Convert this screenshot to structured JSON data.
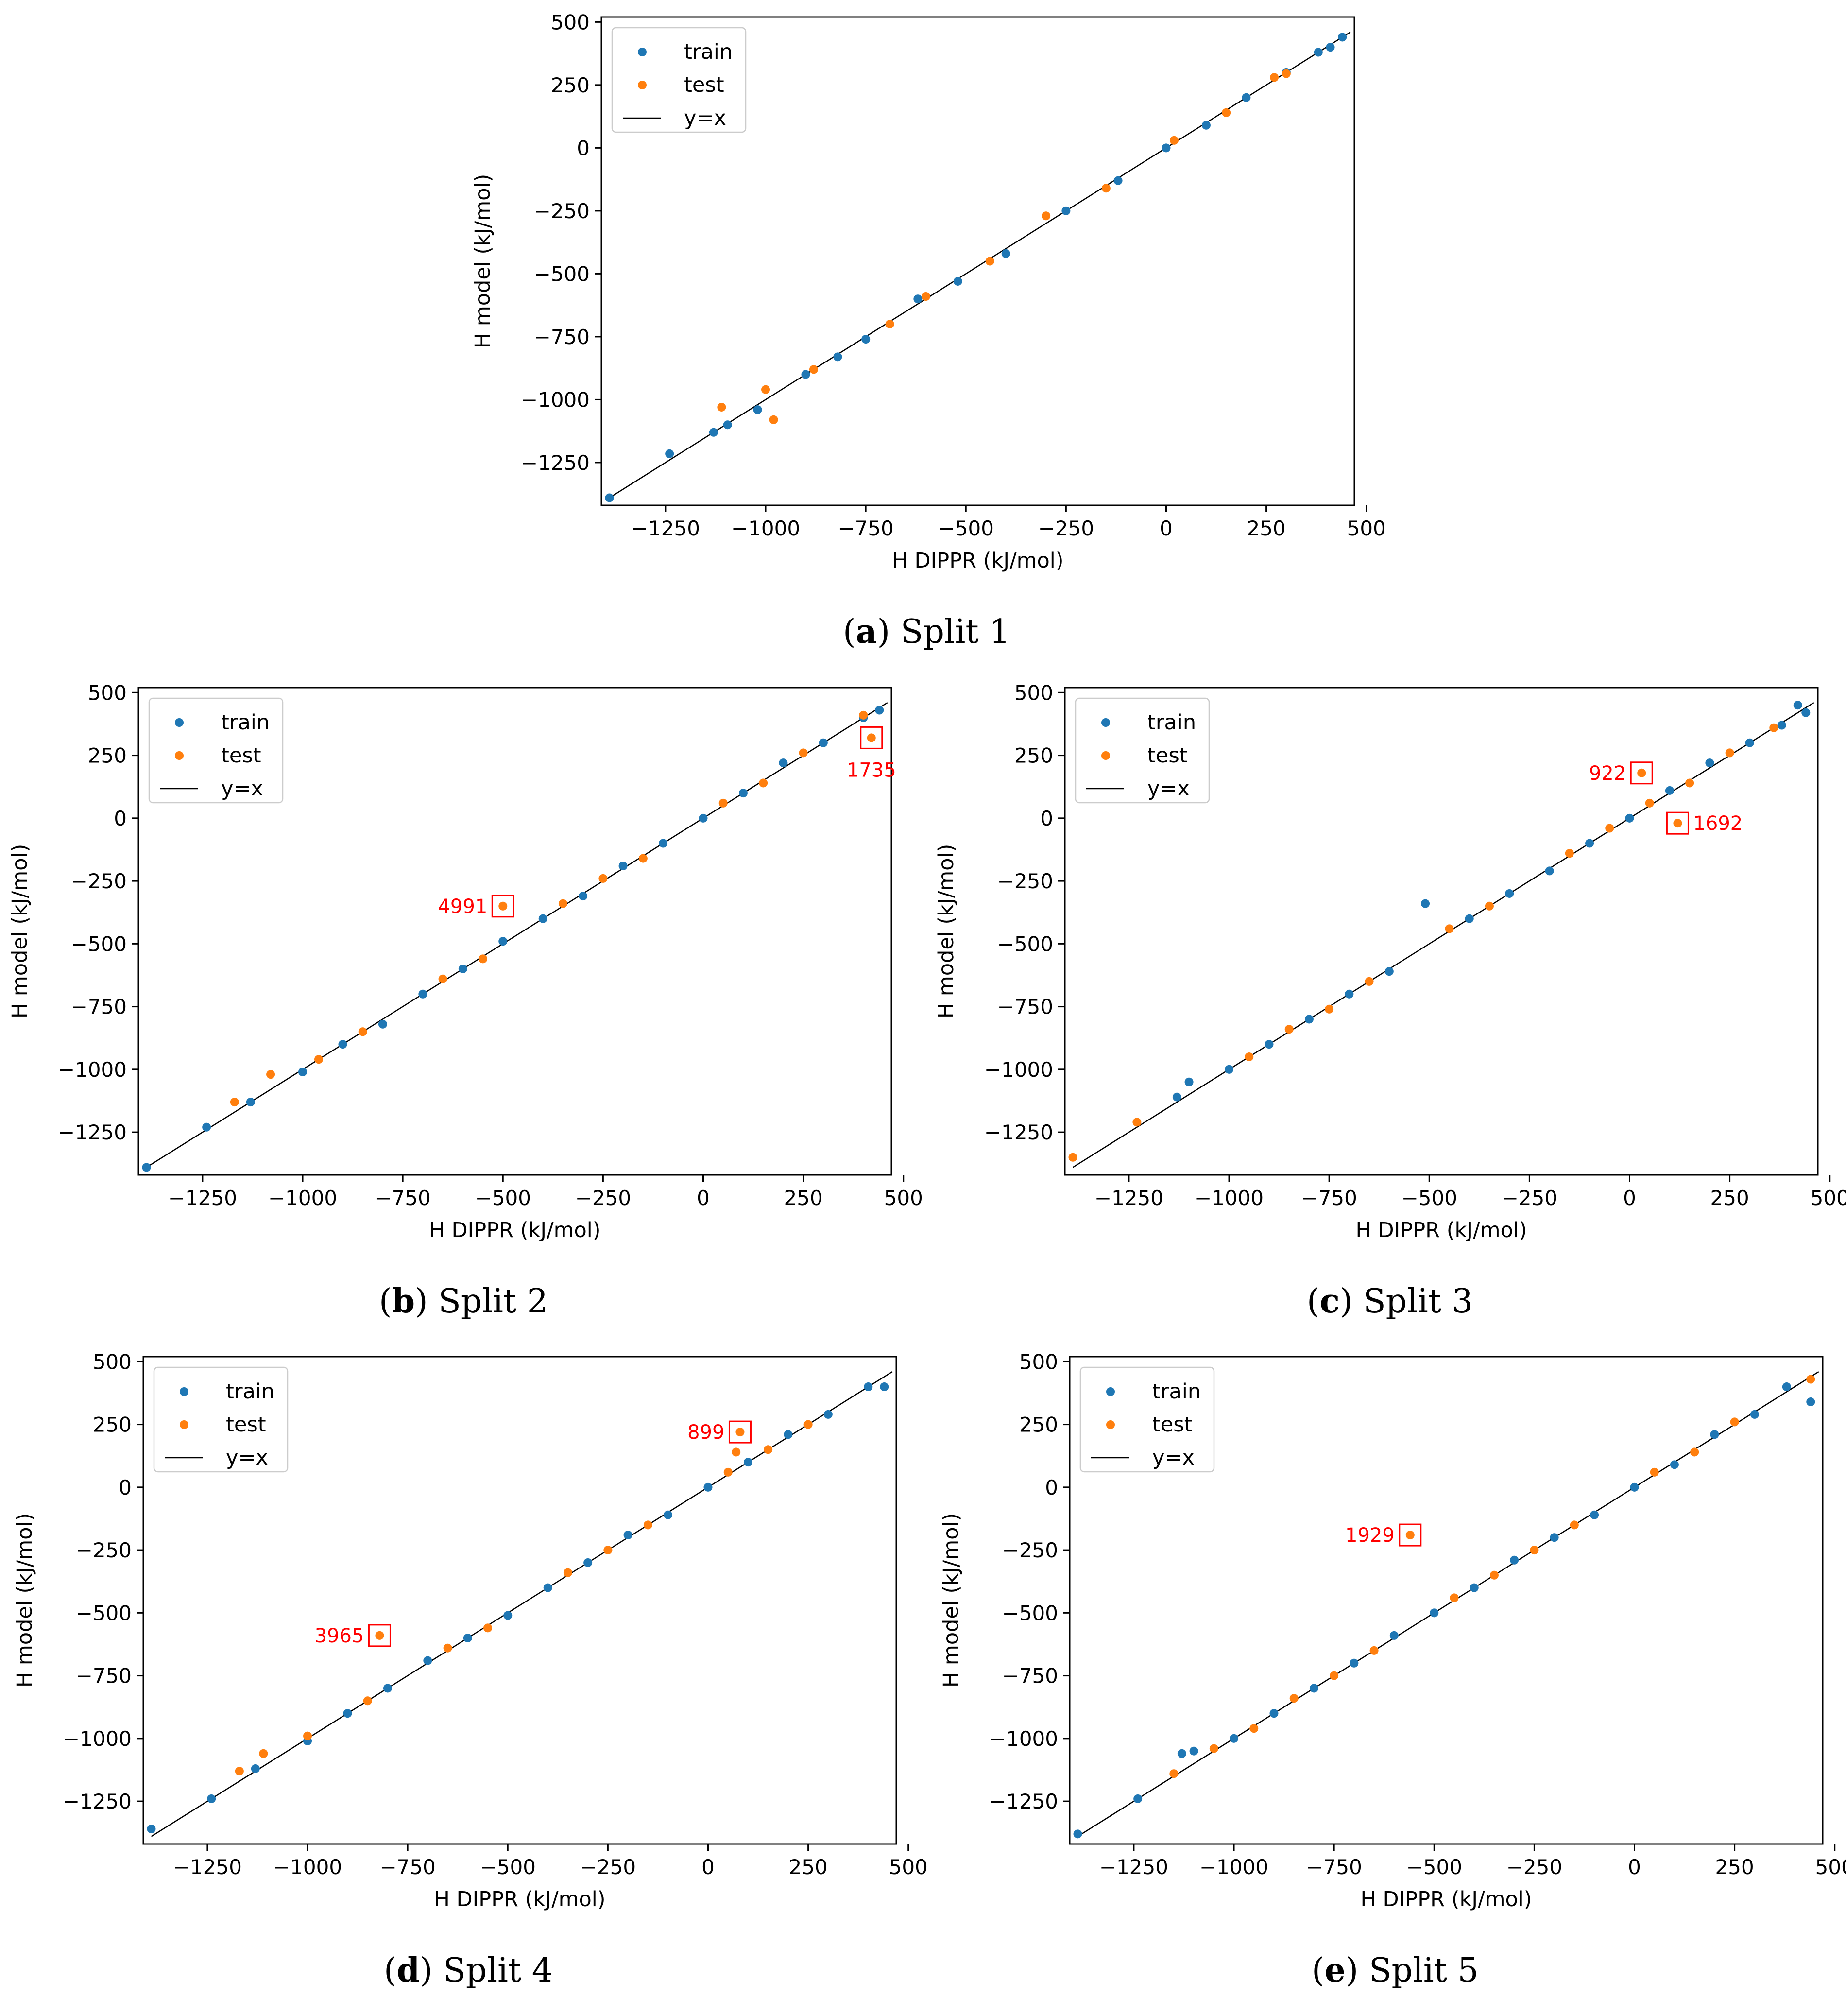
{
  "figure": {
    "captions": [
      {
        "letter": "a",
        "label": "Split 1"
      },
      {
        "letter": "b",
        "label": "Split 2"
      },
      {
        "letter": "c",
        "label": "Split 3"
      },
      {
        "letter": "d",
        "label": "Split 4"
      },
      {
        "letter": "e",
        "label": "Split 5"
      }
    ]
  },
  "colors": {
    "train": "#1f77b4",
    "test": "#ff7f0e",
    "line": "#000000",
    "annotation": "#ff0000"
  },
  "chart_data": [
    {
      "id": "split1",
      "type": "scatter",
      "title": "",
      "xlabel": "H DIPPR (kJ/mol)",
      "ylabel": "H model (kJ/mol)",
      "xlim": [
        -1410,
        470
      ],
      "ylim": [
        -1420,
        520
      ],
      "xticks": [
        -1250,
        -1000,
        -750,
        -500,
        -250,
        0,
        250,
        500
      ],
      "yticks": [
        -1250,
        -1000,
        -750,
        -500,
        -250,
        0,
        250,
        500
      ],
      "legend": {
        "placement": "top-left",
        "entries": [
          "train",
          "test",
          "y=x"
        ]
      },
      "series": [
        {
          "name": "train",
          "points": [
            [
              -1390,
              -1390
            ],
            [
              -1240,
              -1215
            ],
            [
              -1130,
              -1130
            ],
            [
              -1095,
              -1100
            ],
            [
              -1020,
              -1040
            ],
            [
              -900,
              -900
            ],
            [
              -820,
              -830
            ],
            [
              -750,
              -760
            ],
            [
              -620,
              -600
            ],
            [
              -520,
              -530
            ],
            [
              -400,
              -420
            ],
            [
              -250,
              -250
            ],
            [
              -120,
              -130
            ],
            [
              0,
              0
            ],
            [
              100,
              90
            ],
            [
              200,
              200
            ],
            [
              300,
              300
            ],
            [
              380,
              380
            ],
            [
              440,
              440
            ],
            [
              410,
              400
            ]
          ]
        },
        {
          "name": "test",
          "points": [
            [
              -1110,
              -1030
            ],
            [
              -980,
              -1080
            ],
            [
              -1000,
              -960
            ],
            [
              -880,
              -880
            ],
            [
              -690,
              -700
            ],
            [
              -600,
              -590
            ],
            [
              -440,
              -450
            ],
            [
              -300,
              -270
            ],
            [
              -150,
              -160
            ],
            [
              20,
              30
            ],
            [
              150,
              140
            ],
            [
              270,
              280
            ],
            [
              300,
              295
            ]
          ]
        }
      ],
      "annotations": []
    },
    {
      "id": "split2",
      "type": "scatter",
      "title": "",
      "xlabel": "H DIPPR (kJ/mol)",
      "ylabel": "H model (kJ/mol)",
      "xlim": [
        -1410,
        470
      ],
      "ylim": [
        -1420,
        520
      ],
      "xticks": [
        -1250,
        -1000,
        -750,
        -500,
        -250,
        0,
        250,
        500
      ],
      "yticks": [
        -1250,
        -1000,
        -750,
        -500,
        -250,
        0,
        250,
        500
      ],
      "legend": {
        "placement": "top-left",
        "entries": [
          "train",
          "test",
          "y=x"
        ]
      },
      "series": [
        {
          "name": "train",
          "points": [
            [
              -1390,
              -1390
            ],
            [
              -1240,
              -1230
            ],
            [
              -1130,
              -1130
            ],
            [
              -1000,
              -1010
            ],
            [
              -900,
              -900
            ],
            [
              -800,
              -820
            ],
            [
              -700,
              -700
            ],
            [
              -600,
              -600
            ],
            [
              -500,
              -490
            ],
            [
              -400,
              -400
            ],
            [
              -300,
              -310
            ],
            [
              -200,
              -190
            ],
            [
              -100,
              -100
            ],
            [
              0,
              0
            ],
            [
              100,
              100
            ],
            [
              200,
              220
            ],
            [
              300,
              300
            ],
            [
              440,
              430
            ],
            [
              400,
              400
            ]
          ]
        },
        {
          "name": "test",
          "points": [
            [
              -1170,
              -1130
            ],
            [
              -1080,
              -1020
            ],
            [
              -960,
              -960
            ],
            [
              -850,
              -850
            ],
            [
              -650,
              -640
            ],
            [
              -550,
              -560
            ],
            [
              -350,
              -340
            ],
            [
              -250,
              -240
            ],
            [
              -150,
              -160
            ],
            [
              50,
              60
            ],
            [
              150,
              140
            ],
            [
              250,
              260
            ],
            [
              400,
              410
            ],
            [
              -500,
              -350
            ],
            [
              420,
              320
            ]
          ]
        }
      ],
      "annotations": [
        {
          "label": "4991",
          "point": [
            -500,
            -350
          ],
          "side": "left"
        },
        {
          "label": "1735",
          "point": [
            420,
            320
          ],
          "side": "below"
        }
      ]
    },
    {
      "id": "split3",
      "type": "scatter",
      "title": "",
      "xlabel": "H DIPPR (kJ/mol)",
      "ylabel": "H model (kJ/mol)",
      "xlim": [
        -1410,
        470
      ],
      "ylim": [
        -1420,
        520
      ],
      "xticks": [
        -1250,
        -1000,
        -750,
        -500,
        -250,
        0,
        250,
        500
      ],
      "yticks": [
        -1250,
        -1000,
        -750,
        -500,
        -250,
        0,
        250,
        500
      ],
      "legend": {
        "placement": "top-left",
        "entries": [
          "train",
          "test",
          "y=x"
        ]
      },
      "series": [
        {
          "name": "train",
          "points": [
            [
              -1130,
              -1110
            ],
            [
              -1100,
              -1050
            ],
            [
              -1000,
              -1000
            ],
            [
              -900,
              -900
            ],
            [
              -800,
              -800
            ],
            [
              -700,
              -700
            ],
            [
              -600,
              -610
            ],
            [
              -510,
              -340
            ],
            [
              -400,
              -400
            ],
            [
              -300,
              -300
            ],
            [
              -200,
              -210
            ],
            [
              -100,
              -100
            ],
            [
              0,
              0
            ],
            [
              100,
              110
            ],
            [
              200,
              220
            ],
            [
              300,
              300
            ],
            [
              420,
              450
            ],
            [
              440,
              420
            ],
            [
              380,
              370
            ]
          ]
        },
        {
          "name": "test",
          "points": [
            [
              -1390,
              -1350
            ],
            [
              -1230,
              -1210
            ],
            [
              -950,
              -950
            ],
            [
              -850,
              -840
            ],
            [
              -750,
              -760
            ],
            [
              -650,
              -650
            ],
            [
              -450,
              -440
            ],
            [
              -350,
              -350
            ],
            [
              -150,
              -140
            ],
            [
              -50,
              -40
            ],
            [
              50,
              60
            ],
            [
              150,
              140
            ],
            [
              250,
              260
            ],
            [
              360,
              360
            ],
            [
              30,
              180
            ],
            [
              120,
              -20
            ]
          ]
        }
      ],
      "annotations": [
        {
          "label": "922",
          "point": [
            30,
            180
          ],
          "side": "left"
        },
        {
          "label": "1692",
          "point": [
            120,
            -20
          ],
          "side": "right"
        }
      ]
    },
    {
      "id": "split4",
      "type": "scatter",
      "title": "",
      "xlabel": "H DIPPR (kJ/mol)",
      "ylabel": "H model (kJ/mol)",
      "xlim": [
        -1410,
        470
      ],
      "ylim": [
        -1420,
        520
      ],
      "xticks": [
        -1250,
        -1000,
        -750,
        -500,
        -250,
        0,
        250,
        500
      ],
      "yticks": [
        -1250,
        -1000,
        -750,
        -500,
        -250,
        0,
        250,
        500
      ],
      "legend": {
        "placement": "top-left",
        "entries": [
          "train",
          "test",
          "y=x"
        ]
      },
      "series": [
        {
          "name": "train",
          "points": [
            [
              -1390,
              -1360
            ],
            [
              -1240,
              -1240
            ],
            [
              -1130,
              -1120
            ],
            [
              -1000,
              -1010
            ],
            [
              -900,
              -900
            ],
            [
              -800,
              -800
            ],
            [
              -700,
              -690
            ],
            [
              -600,
              -600
            ],
            [
              -500,
              -510
            ],
            [
              -400,
              -400
            ],
            [
              -300,
              -300
            ],
            [
              -200,
              -190
            ],
            [
              -100,
              -110
            ],
            [
              0,
              0
            ],
            [
              100,
              100
            ],
            [
              200,
              210
            ],
            [
              300,
              290
            ],
            [
              440,
              400
            ],
            [
              400,
              400
            ]
          ]
        },
        {
          "name": "test",
          "points": [
            [
              -1170,
              -1130
            ],
            [
              -1110,
              -1060
            ],
            [
              -1000,
              -990
            ],
            [
              -850,
              -850
            ],
            [
              -650,
              -640
            ],
            [
              -550,
              -560
            ],
            [
              -350,
              -340
            ],
            [
              -250,
              -250
            ],
            [
              -150,
              -150
            ],
            [
              50,
              60
            ],
            [
              70,
              140
            ],
            [
              150,
              150
            ],
            [
              250,
              250
            ],
            [
              -820,
              -590
            ],
            [
              80,
              220
            ]
          ]
        }
      ],
      "annotations": [
        {
          "label": "3965",
          "point": [
            -820,
            -590
          ],
          "side": "left"
        },
        {
          "label": "899",
          "point": [
            80,
            220
          ],
          "side": "left"
        }
      ]
    },
    {
      "id": "split5",
      "type": "scatter",
      "title": "",
      "xlabel": "H DIPPR (kJ/mol)",
      "ylabel": "H model (kJ/mol)",
      "xlim": [
        -1410,
        470
      ],
      "ylim": [
        -1420,
        520
      ],
      "xticks": [
        -1250,
        -1000,
        -750,
        -500,
        -250,
        0,
        250,
        500
      ],
      "yticks": [
        -1250,
        -1000,
        -750,
        -500,
        -250,
        0,
        250,
        500
      ],
      "legend": {
        "placement": "top-left",
        "entries": [
          "train",
          "test",
          "y=x"
        ]
      },
      "series": [
        {
          "name": "train",
          "points": [
            [
              -1390,
              -1380
            ],
            [
              -1240,
              -1240
            ],
            [
              -1130,
              -1060
            ],
            [
              -1100,
              -1050
            ],
            [
              -1000,
              -1000
            ],
            [
              -900,
              -900
            ],
            [
              -800,
              -800
            ],
            [
              -700,
              -700
            ],
            [
              -600,
              -590
            ],
            [
              -500,
              -500
            ],
            [
              -400,
              -400
            ],
            [
              -300,
              -290
            ],
            [
              -200,
              -200
            ],
            [
              -100,
              -110
            ],
            [
              0,
              0
            ],
            [
              100,
              90
            ],
            [
              200,
              210
            ],
            [
              300,
              290
            ],
            [
              380,
              400
            ],
            [
              440,
              340
            ]
          ]
        },
        {
          "name": "test",
          "points": [
            [
              -1150,
              -1140
            ],
            [
              -1050,
              -1040
            ],
            [
              -950,
              -960
            ],
            [
              -850,
              -840
            ],
            [
              -750,
              -750
            ],
            [
              -650,
              -650
            ],
            [
              -450,
              -440
            ],
            [
              -350,
              -350
            ],
            [
              -250,
              -250
            ],
            [
              -150,
              -150
            ],
            [
              50,
              60
            ],
            [
              150,
              140
            ],
            [
              250,
              260
            ],
            [
              440,
              430
            ],
            [
              -560,
              -190
            ]
          ]
        }
      ],
      "annotations": [
        {
          "label": "1929",
          "point": [
            -560,
            -190
          ],
          "side": "left"
        }
      ]
    }
  ]
}
